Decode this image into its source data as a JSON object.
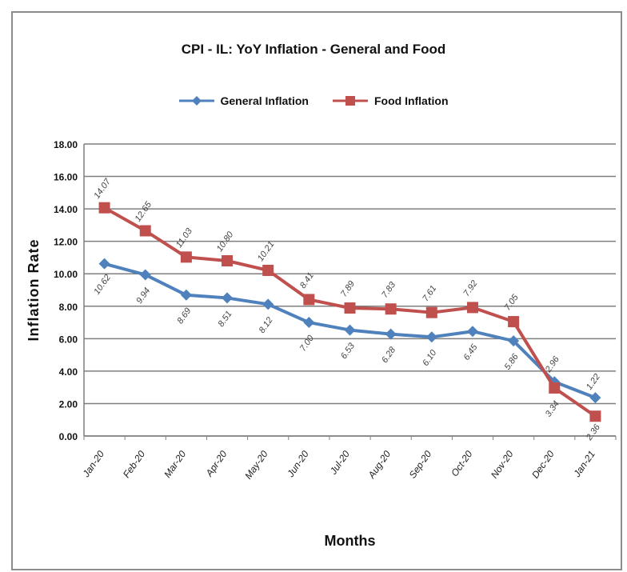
{
  "chart_data": {
    "type": "line",
    "title": "CPI - IL: YoY Inflation - General and Food",
    "xlabel": "Months",
    "ylabel": "Inflation Rate",
    "ylim": [
      0,
      18
    ],
    "yticks": [
      "0.00",
      "2.00",
      "4.00",
      "6.00",
      "8.00",
      "10.00",
      "12.00",
      "14.00",
      "16.00",
      "18.00"
    ],
    "categories": [
      "Jan-20",
      "Feb-20",
      "Mar-20",
      "Apr-20",
      "May-20",
      "Jun-20",
      "Jul-20",
      "Aug-20",
      "Sep-20",
      "Oct-20",
      "Nov-20",
      "Dec-20",
      "Jan-21"
    ],
    "series": [
      {
        "name": "General Inflation",
        "color": "#4f81bd",
        "marker": "diamond",
        "values": [
          10.62,
          9.94,
          8.69,
          8.51,
          8.12,
          7.0,
          6.53,
          6.28,
          6.1,
          6.45,
          5.86,
          3.34,
          2.36
        ],
        "labels": [
          "10.62",
          "9.94",
          "8.69",
          "8.51",
          "8.12",
          "7.00",
          "6.53",
          "6.28",
          "6.10",
          "6.45",
          "5.86",
          "3.34",
          "2.36"
        ]
      },
      {
        "name": "Food Inflation",
        "color": "#c0504d",
        "marker": "square",
        "values": [
          14.07,
          12.65,
          11.03,
          10.8,
          10.21,
          8.41,
          7.89,
          7.83,
          7.61,
          7.92,
          7.05,
          2.96,
          1.22
        ],
        "labels": [
          "14.07",
          "12.65",
          "11.03",
          "10.80",
          "10.21",
          "8.41",
          "7.89",
          "7.83",
          "7.61",
          "7.92",
          "7.05",
          "2.96",
          "1.22"
        ]
      }
    ],
    "grid": true,
    "legend_position": "top"
  }
}
